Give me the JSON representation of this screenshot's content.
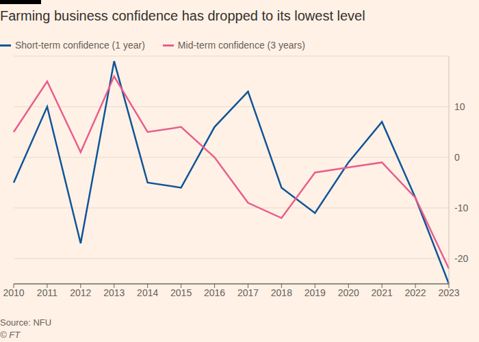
{
  "chart_data": {
    "type": "line",
    "title": "Farming business confidence has dropped to its lowest level",
    "source": "Source: NFU",
    "credit": "© FT",
    "categories": [
      "2010",
      "2011",
      "2012",
      "2013",
      "2014",
      "2015",
      "2016",
      "2017",
      "2018",
      "2019",
      "2020",
      "2021",
      "2022",
      "2023"
    ],
    "series": [
      {
        "name": "Short-term confidence (1 year)",
        "color": "#0f5499",
        "values": [
          -5,
          10,
          -17,
          19,
          -5,
          -6,
          6,
          13,
          -6,
          -11,
          -1,
          7,
          -8,
          -25
        ]
      },
      {
        "name": "Mid-term confidence (3 years)",
        "color": "#e95d8c",
        "values": [
          5,
          15,
          1,
          16,
          5,
          6,
          0,
          -9,
          -12,
          -3,
          -2,
          -1,
          -8,
          -22
        ]
      }
    ],
    "ylim": [
      -25,
      20
    ],
    "yticks": [
      -20,
      -10,
      0,
      10
    ],
    "grid": true,
    "legend": "top"
  }
}
